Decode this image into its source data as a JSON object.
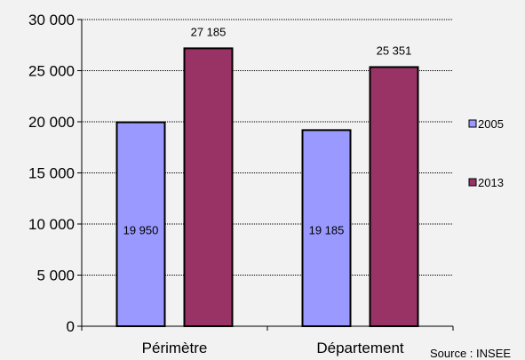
{
  "chart_data": {
    "type": "bar",
    "categories": [
      "Périmètre",
      "Département"
    ],
    "series": [
      {
        "name": "2005",
        "values": [
          19950,
          19185
        ],
        "labels": [
          "19 950",
          "19 185"
        ],
        "color": "#9999ff"
      },
      {
        "name": "2013",
        "values": [
          27185,
          25351
        ],
        "labels": [
          "27 185",
          "25 351"
        ],
        "color": "#993366"
      }
    ],
    "ylim": [
      0,
      30000
    ],
    "yticks": [
      0,
      5000,
      10000,
      15000,
      20000,
      25000,
      30000
    ],
    "ytick_labels": [
      "0",
      "5 000",
      "10 000",
      "15 000",
      "20 000",
      "25 000",
      "30 000"
    ],
    "grid": true,
    "legend_position": "right",
    "title": "",
    "xlabel": "",
    "ylabel": ""
  },
  "source": "Source : INSEE"
}
